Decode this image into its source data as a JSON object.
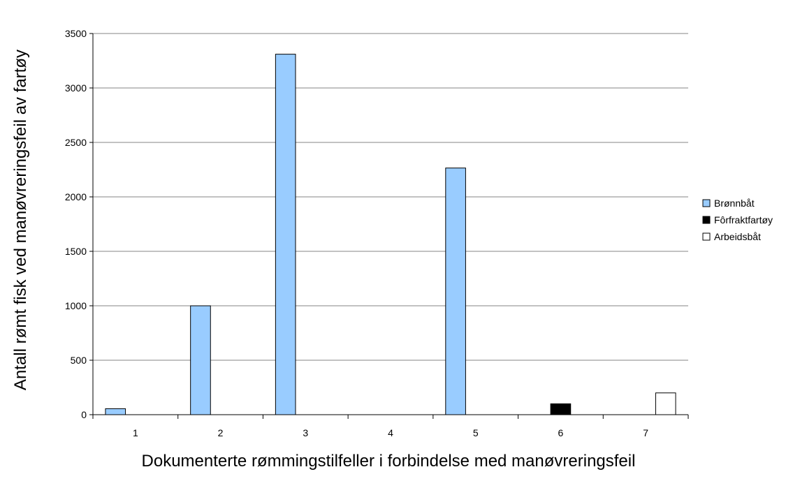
{
  "chart_data": {
    "type": "bar",
    "categories": [
      "1",
      "2",
      "3",
      "4",
      "5",
      "6",
      "7"
    ],
    "series": [
      {
        "name": "Brønnbåt",
        "color": "#99ccff",
        "values": [
          55,
          1000,
          3310,
          0,
          2265,
          0,
          0
        ]
      },
      {
        "name": "Fôrfraktfartøy",
        "color": "#000000",
        "values": [
          0,
          0,
          0,
          0,
          0,
          100,
          0
        ]
      },
      {
        "name": "Arbeidsbåt",
        "color": "#ffffff",
        "values": [
          0,
          0,
          0,
          0,
          0,
          0,
          200
        ]
      }
    ],
    "xlabel": "Dokumenterte rømmingstilfeller i forbindelse med manøvreringsfeil",
    "ylabel": "Antall rømt fisk ved manøvreringsfeil av fartøy",
    "ylim": [
      0,
      3500
    ],
    "yticks": [
      0,
      500,
      1000,
      1500,
      2000,
      2500,
      3000,
      3500
    ],
    "grid": true,
    "legend_position": "right"
  }
}
